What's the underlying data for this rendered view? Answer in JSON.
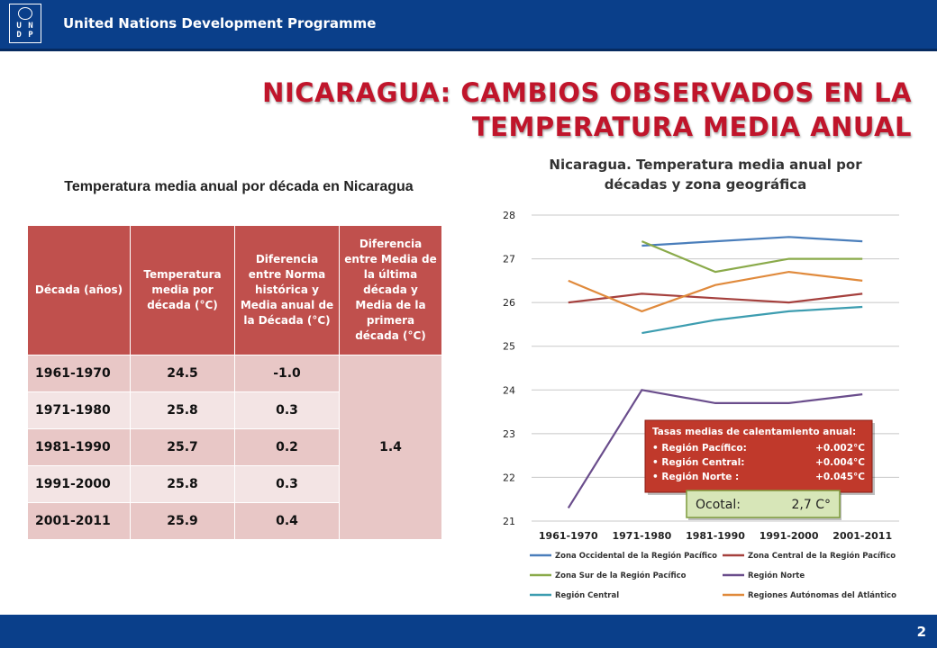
{
  "header": {
    "org_name": "United Nations Development Programme",
    "logo_letters": "U N\nD P"
  },
  "slide": {
    "title_line1": "NICARAGUA: CAMBIOS OBSERVADOS EN LA",
    "title_line2": "TEMPERATURA MEDIA ANUAL",
    "page_number": "2"
  },
  "table": {
    "caption": "Temperatura media anual por década en Nicaragua",
    "headers": [
      "Década (años)",
      "Temperatura media por década (°C)",
      "Diferencia entre Norma histórica y Media anual de la Década (°C)",
      "Diferencia entre Media de la última década y Media de la primera década (°C)"
    ],
    "rows": [
      {
        "decade": "1961-1970",
        "temp": "24.5",
        "diff": "-1.0"
      },
      {
        "decade": "1971-1980",
        "temp": "25.8",
        "diff": "0.3"
      },
      {
        "decade": "1981-1990",
        "temp": "25.7",
        "diff": "0.2"
      },
      {
        "decade": "1991-2000",
        "temp": "25.8",
        "diff": "0.3"
      },
      {
        "decade": "2001-2011",
        "temp": "25.9",
        "diff": "0.4"
      }
    ],
    "merged_value": "1.4"
  },
  "chart_data": {
    "type": "line",
    "title": "Nicaragua. Temperatura media anual por décadas y zona geográfica",
    "categories": [
      "1961-1970",
      "1971-1980",
      "1981-1990",
      "1991-2000",
      "2001-2011"
    ],
    "ylim": [
      21,
      28
    ],
    "yticks": [
      "21",
      "22",
      "23",
      "24",
      "25",
      "26",
      "27",
      "28"
    ],
    "grid": true,
    "legend_position": "bottom",
    "series": [
      {
        "name": "Zona Occidental de la Región Pacífico",
        "color": "#4a7ebb",
        "values": [
          null,
          27.3,
          27.4,
          27.5,
          27.4
        ]
      },
      {
        "name": "Zona Central de la Región Pacífico",
        "color": "#a5403d",
        "values": [
          26.0,
          26.2,
          26.1,
          26.0,
          26.2
        ]
      },
      {
        "name": "Zona Sur de la Región Pacífico",
        "color": "#8aaa4a",
        "values": [
          null,
          27.4,
          26.7,
          27.0,
          27.0
        ]
      },
      {
        "name": "Región Norte",
        "color": "#6a4d8c",
        "values": [
          21.3,
          24.0,
          23.7,
          23.7,
          23.9
        ]
      },
      {
        "name": "Región Central",
        "color": "#3d9db0",
        "values": [
          null,
          25.3,
          25.6,
          25.8,
          25.9
        ]
      },
      {
        "name": "Regiones Autónomas del Atlántico",
        "color": "#e08a3c",
        "values": [
          26.5,
          25.8,
          26.4,
          26.7,
          26.5
        ]
      }
    ],
    "annotation_box": {
      "title": "Tasas medias de calentamiento anual:",
      "items": [
        {
          "label": "• Región Pacífico:",
          "value": "+0.002°C"
        },
        {
          "label": "• Región Central:",
          "value": "+0.004°C"
        },
        {
          "label": "• Región Norte :",
          "value": "+0.045°C"
        }
      ]
    },
    "ocotal_box": {
      "label": "Ocotal:",
      "value": "2,7 C°"
    }
  }
}
